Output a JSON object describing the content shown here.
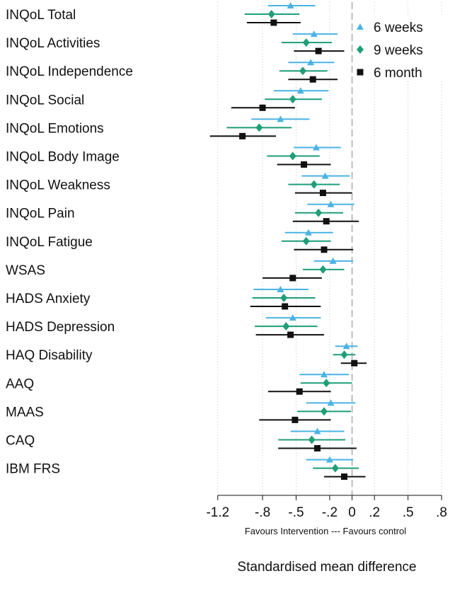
{
  "chart_data": {
    "type": "forest",
    "outcomes": [
      "INQoL Total",
      "INQoL Activities",
      "INQoL Independence",
      "INQoL Social",
      "INQoL Emotions",
      "INQoL Body Image",
      "INQoL Weakness",
      "INQoL Pain",
      "INQoL Fatigue",
      "WSAS",
      "HADS Anxiety",
      "HADS Depression",
      "HAQ Disability",
      "AAQ",
      "MAAS",
      "CAQ",
      "IBM FRS"
    ],
    "series": [
      {
        "name": "6 weeks",
        "color": "#4ab3e4",
        "marker": "triangle",
        "points": [
          {
            "est": -0.55,
            "lo": -0.75,
            "hi": -0.33
          },
          {
            "est": -0.34,
            "lo": -0.53,
            "hi": -0.13
          },
          {
            "est": -0.37,
            "lo": -0.57,
            "hi": -0.16
          },
          {
            "est": -0.46,
            "lo": -0.7,
            "hi": -0.21
          },
          {
            "est": -0.64,
            "lo": -0.9,
            "hi": -0.38
          },
          {
            "est": -0.32,
            "lo": -0.52,
            "hi": -0.1
          },
          {
            "est": -0.24,
            "lo": -0.45,
            "hi": -0.02
          },
          {
            "est": -0.19,
            "lo": -0.4,
            "hi": 0.02
          },
          {
            "est": -0.39,
            "lo": -0.6,
            "hi": -0.17
          },
          {
            "est": -0.17,
            "lo": -0.34,
            "hi": 0.01
          },
          {
            "est": -0.64,
            "lo": -0.88,
            "hi": -0.39
          },
          {
            "est": -0.53,
            "lo": -0.77,
            "hi": -0.28
          },
          {
            "est": -0.05,
            "lo": -0.15,
            "hi": 0.05
          },
          {
            "est": -0.25,
            "lo": -0.47,
            "hi": -0.03
          },
          {
            "est": -0.19,
            "lo": -0.41,
            "hi": 0.03
          },
          {
            "est": -0.31,
            "lo": -0.55,
            "hi": -0.07
          },
          {
            "est": -0.2,
            "lo": -0.41,
            "hi": 0.01
          }
        ]
      },
      {
        "name": "9 weeks",
        "color": "#1f9e78",
        "marker": "diamond",
        "points": [
          {
            "est": -0.72,
            "lo": -0.96,
            "hi": -0.47
          },
          {
            "est": -0.41,
            "lo": -0.63,
            "hi": -0.18
          },
          {
            "est": -0.44,
            "lo": -0.65,
            "hi": -0.22
          },
          {
            "est": -0.53,
            "lo": -0.78,
            "hi": -0.27
          },
          {
            "est": -0.83,
            "lo": -1.12,
            "hi": -0.54
          },
          {
            "est": -0.53,
            "lo": -0.76,
            "hi": -0.29
          },
          {
            "est": -0.34,
            "lo": -0.57,
            "hi": -0.11
          },
          {
            "est": -0.3,
            "lo": -0.51,
            "hi": -0.08
          },
          {
            "est": -0.41,
            "lo": -0.63,
            "hi": -0.19
          },
          {
            "est": -0.26,
            "lo": -0.44,
            "hi": -0.07
          },
          {
            "est": -0.61,
            "lo": -0.89,
            "hi": -0.33
          },
          {
            "est": -0.59,
            "lo": -0.87,
            "hi": -0.31
          },
          {
            "est": -0.07,
            "lo": -0.17,
            "hi": 0.03
          },
          {
            "est": -0.23,
            "lo": -0.46,
            "hi": 0.0
          },
          {
            "est": -0.25,
            "lo": -0.49,
            "hi": -0.01
          },
          {
            "est": -0.36,
            "lo": -0.66,
            "hi": -0.06
          },
          {
            "est": -0.15,
            "lo": -0.35,
            "hi": 0.06
          }
        ]
      },
      {
        "name": "6 month",
        "color": "#111111",
        "marker": "square",
        "points": [
          {
            "est": -0.7,
            "lo": -0.94,
            "hi": -0.46
          },
          {
            "est": -0.3,
            "lo": -0.52,
            "hi": -0.07
          },
          {
            "est": -0.35,
            "lo": -0.57,
            "hi": -0.13
          },
          {
            "est": -0.8,
            "lo": -1.08,
            "hi": -0.51
          },
          {
            "est": -0.98,
            "lo": -1.27,
            "hi": -0.68
          },
          {
            "est": -0.43,
            "lo": -0.67,
            "hi": -0.19
          },
          {
            "est": -0.26,
            "lo": -0.51,
            "hi": 0.0
          },
          {
            "est": -0.23,
            "lo": -0.53,
            "hi": 0.06
          },
          {
            "est": -0.25,
            "lo": -0.52,
            "hi": 0.01
          },
          {
            "est": -0.53,
            "lo": -0.8,
            "hi": -0.27
          },
          {
            "est": -0.6,
            "lo": -0.91,
            "hi": -0.28
          },
          {
            "est": -0.55,
            "lo": -0.86,
            "hi": -0.25
          },
          {
            "est": 0.02,
            "lo": -0.1,
            "hi": 0.13
          },
          {
            "est": -0.47,
            "lo": -0.75,
            "hi": -0.19
          },
          {
            "est": -0.51,
            "lo": -0.83,
            "hi": -0.19
          },
          {
            "est": -0.31,
            "lo": -0.66,
            "hi": 0.04
          },
          {
            "est": -0.07,
            "lo": -0.25,
            "hi": 0.12
          }
        ]
      }
    ],
    "xlim": [
      -1.3,
      0.85
    ],
    "xticks": [
      -1.2,
      -0.8,
      -0.5,
      -0.2,
      0,
      0.2,
      0.5,
      0.8
    ],
    "xtick_labels": [
      "-1.2",
      "-.8",
      "-.5",
      "-.2",
      "0",
      ".2",
      ".5",
      ".8"
    ],
    "reference_line": 0,
    "grid": "vertical dotted",
    "legend_position": "top-right",
    "xlabel": "Standardised mean difference",
    "caption": "Favours Intervention --- Favours control"
  }
}
